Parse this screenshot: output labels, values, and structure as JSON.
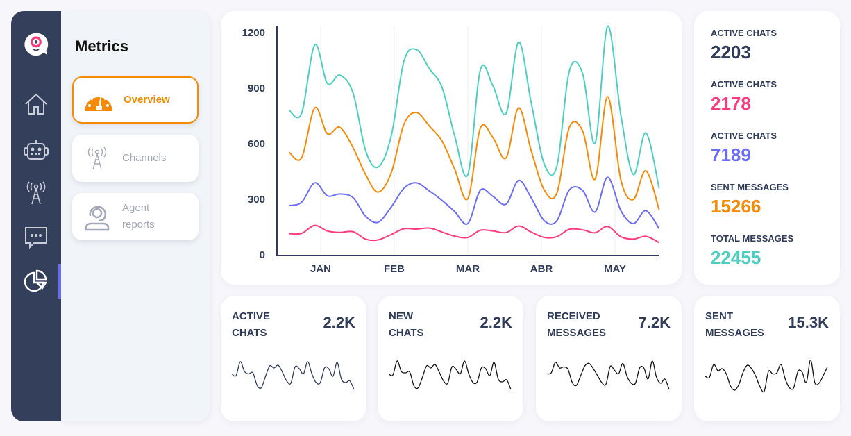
{
  "sidebar": {
    "logo": "chat-bot-logo",
    "icons": [
      "home-icon",
      "bot-icon",
      "antenna-icon",
      "chat-icon",
      "pie-chart-icon"
    ],
    "active_index": 4,
    "accent": "#6b6cf6"
  },
  "submenu": {
    "title": "Metrics",
    "items": [
      {
        "label": "Overview",
        "icon": "gauge-icon",
        "active": true
      },
      {
        "label": "Channels",
        "icon": "antenna-icon",
        "active": false
      },
      {
        "label": "Agent reports",
        "icon": "agent-headset-icon",
        "active": false
      }
    ],
    "accent": "#f58a07"
  },
  "chart_data": {
    "type": "line",
    "categories": [
      "JAN",
      "FEB",
      "MAR",
      "ABR",
      "MAY"
    ],
    "ylim": [
      0,
      1200
    ],
    "yticks": [
      0,
      300,
      600,
      900,
      1200
    ],
    "grid": "vertical",
    "x": [
      -0.43,
      -0.26,
      -0.08,
      0.09,
      0.26,
      0.44,
      0.61,
      0.78,
      0.96,
      1.13,
      1.3,
      1.48,
      1.65,
      1.82,
      2.0,
      2.17,
      2.34,
      2.52,
      2.69,
      2.86,
      3.04,
      3.21,
      3.38,
      3.56,
      3.73,
      3.9,
      4.08,
      4.25,
      4.42,
      4.6
    ],
    "series": [
      {
        "color": "#4ccfc0",
        "values": [
          777,
          760,
          1130,
          922,
          967,
          870,
          560,
          470,
          640,
          1040,
          1105,
          1000,
          900,
          640,
          430,
          995,
          910,
          760,
          1145,
          820,
          485,
          475,
          990,
          975,
          600,
          1230,
          750,
          430,
          655,
          355
        ]
      },
      {
        "color": "#f58a07",
        "values": [
          550,
          520,
          790,
          650,
          685,
          575,
          430,
          335,
          440,
          700,
          765,
          690,
          610,
          460,
          300,
          680,
          630,
          520,
          790,
          560,
          345,
          330,
          685,
          665,
          405,
          850,
          400,
          295,
          450,
          240
        ]
      },
      {
        "color": "#6b6cf6",
        "values": [
          262,
          280,
          385,
          315,
          325,
          305,
          205,
          172,
          255,
          355,
          385,
          340,
          290,
          230,
          165,
          345,
          312,
          270,
          398,
          305,
          180,
          180,
          347,
          344,
          228,
          415,
          235,
          165,
          235,
          137
        ]
      },
      {
        "color": "#fb3b7c",
        "values": [
          110,
          112,
          155,
          125,
          117,
          121,
          81,
          77,
          106,
          137,
          135,
          140,
          119,
          97,
          90,
          129,
          125,
          116,
          152,
          119,
          90,
          94,
          134,
          131,
          115,
          149,
          94,
          81,
          96,
          62
        ]
      }
    ]
  },
  "stats": [
    {
      "label": "ACTIVE CHATS",
      "value": "2203",
      "color": "#2f3b59"
    },
    {
      "label": "ACTIVE CHATS",
      "value": "2178",
      "color": "#fb3b7c"
    },
    {
      "label": "ACTIVE CHATS",
      "value": "7189",
      "color": "#6b6cf6"
    },
    {
      "label": "SENT MESSAGES",
      "value": "15266",
      "color": "#f58a07"
    },
    {
      "label": "TOTAL MESSAGES",
      "value": "22455",
      "color": "#4ccfc0"
    }
  ],
  "mini_cards": [
    {
      "label_1": "ACTIVE",
      "label_2": "CHATS",
      "value": "2.2K",
      "spark": [
        55,
        50,
        90,
        62,
        55,
        58,
        22,
        15,
        48,
        78,
        72,
        80,
        60,
        35,
        28,
        75,
        70,
        55,
        90,
        55,
        30,
        30,
        72,
        70,
        48,
        88,
        40,
        30,
        35,
        10
      ],
      "color": "#2f3b59"
    },
    {
      "label_1": "NEW",
      "label_2": "CHATS",
      "value": "2.2K",
      "spark": [
        55,
        52,
        92,
        62,
        58,
        60,
        20,
        15,
        45,
        78,
        72,
        82,
        60,
        35,
        28,
        75,
        68,
        55,
        92,
        55,
        30,
        32,
        72,
        70,
        50,
        88,
        40,
        32,
        38,
        10
      ],
      "color": "#111111"
    },
    {
      "label_1": "RECEIVED",
      "label_2": "MESSAGES",
      "value": "7.2K",
      "spark": [
        55,
        58,
        88,
        72,
        75,
        68,
        30,
        22,
        50,
        78,
        85,
        70,
        50,
        30,
        25,
        76,
        66,
        55,
        85,
        48,
        28,
        28,
        72,
        72,
        40,
        92,
        45,
        28,
        40,
        10
      ],
      "color": "#111111"
    },
    {
      "label_1": "SENT",
      "label_2": "MESSAGES",
      "value": "15.3K",
      "spark": [
        48,
        45,
        82,
        64,
        70,
        55,
        20,
        8,
        25,
        60,
        80,
        70,
        48,
        18,
        5,
        62,
        55,
        58,
        82,
        40,
        15,
        15,
        62,
        60,
        30,
        95,
        30,
        28,
        50,
        75
      ],
      "color": "#111111"
    }
  ]
}
